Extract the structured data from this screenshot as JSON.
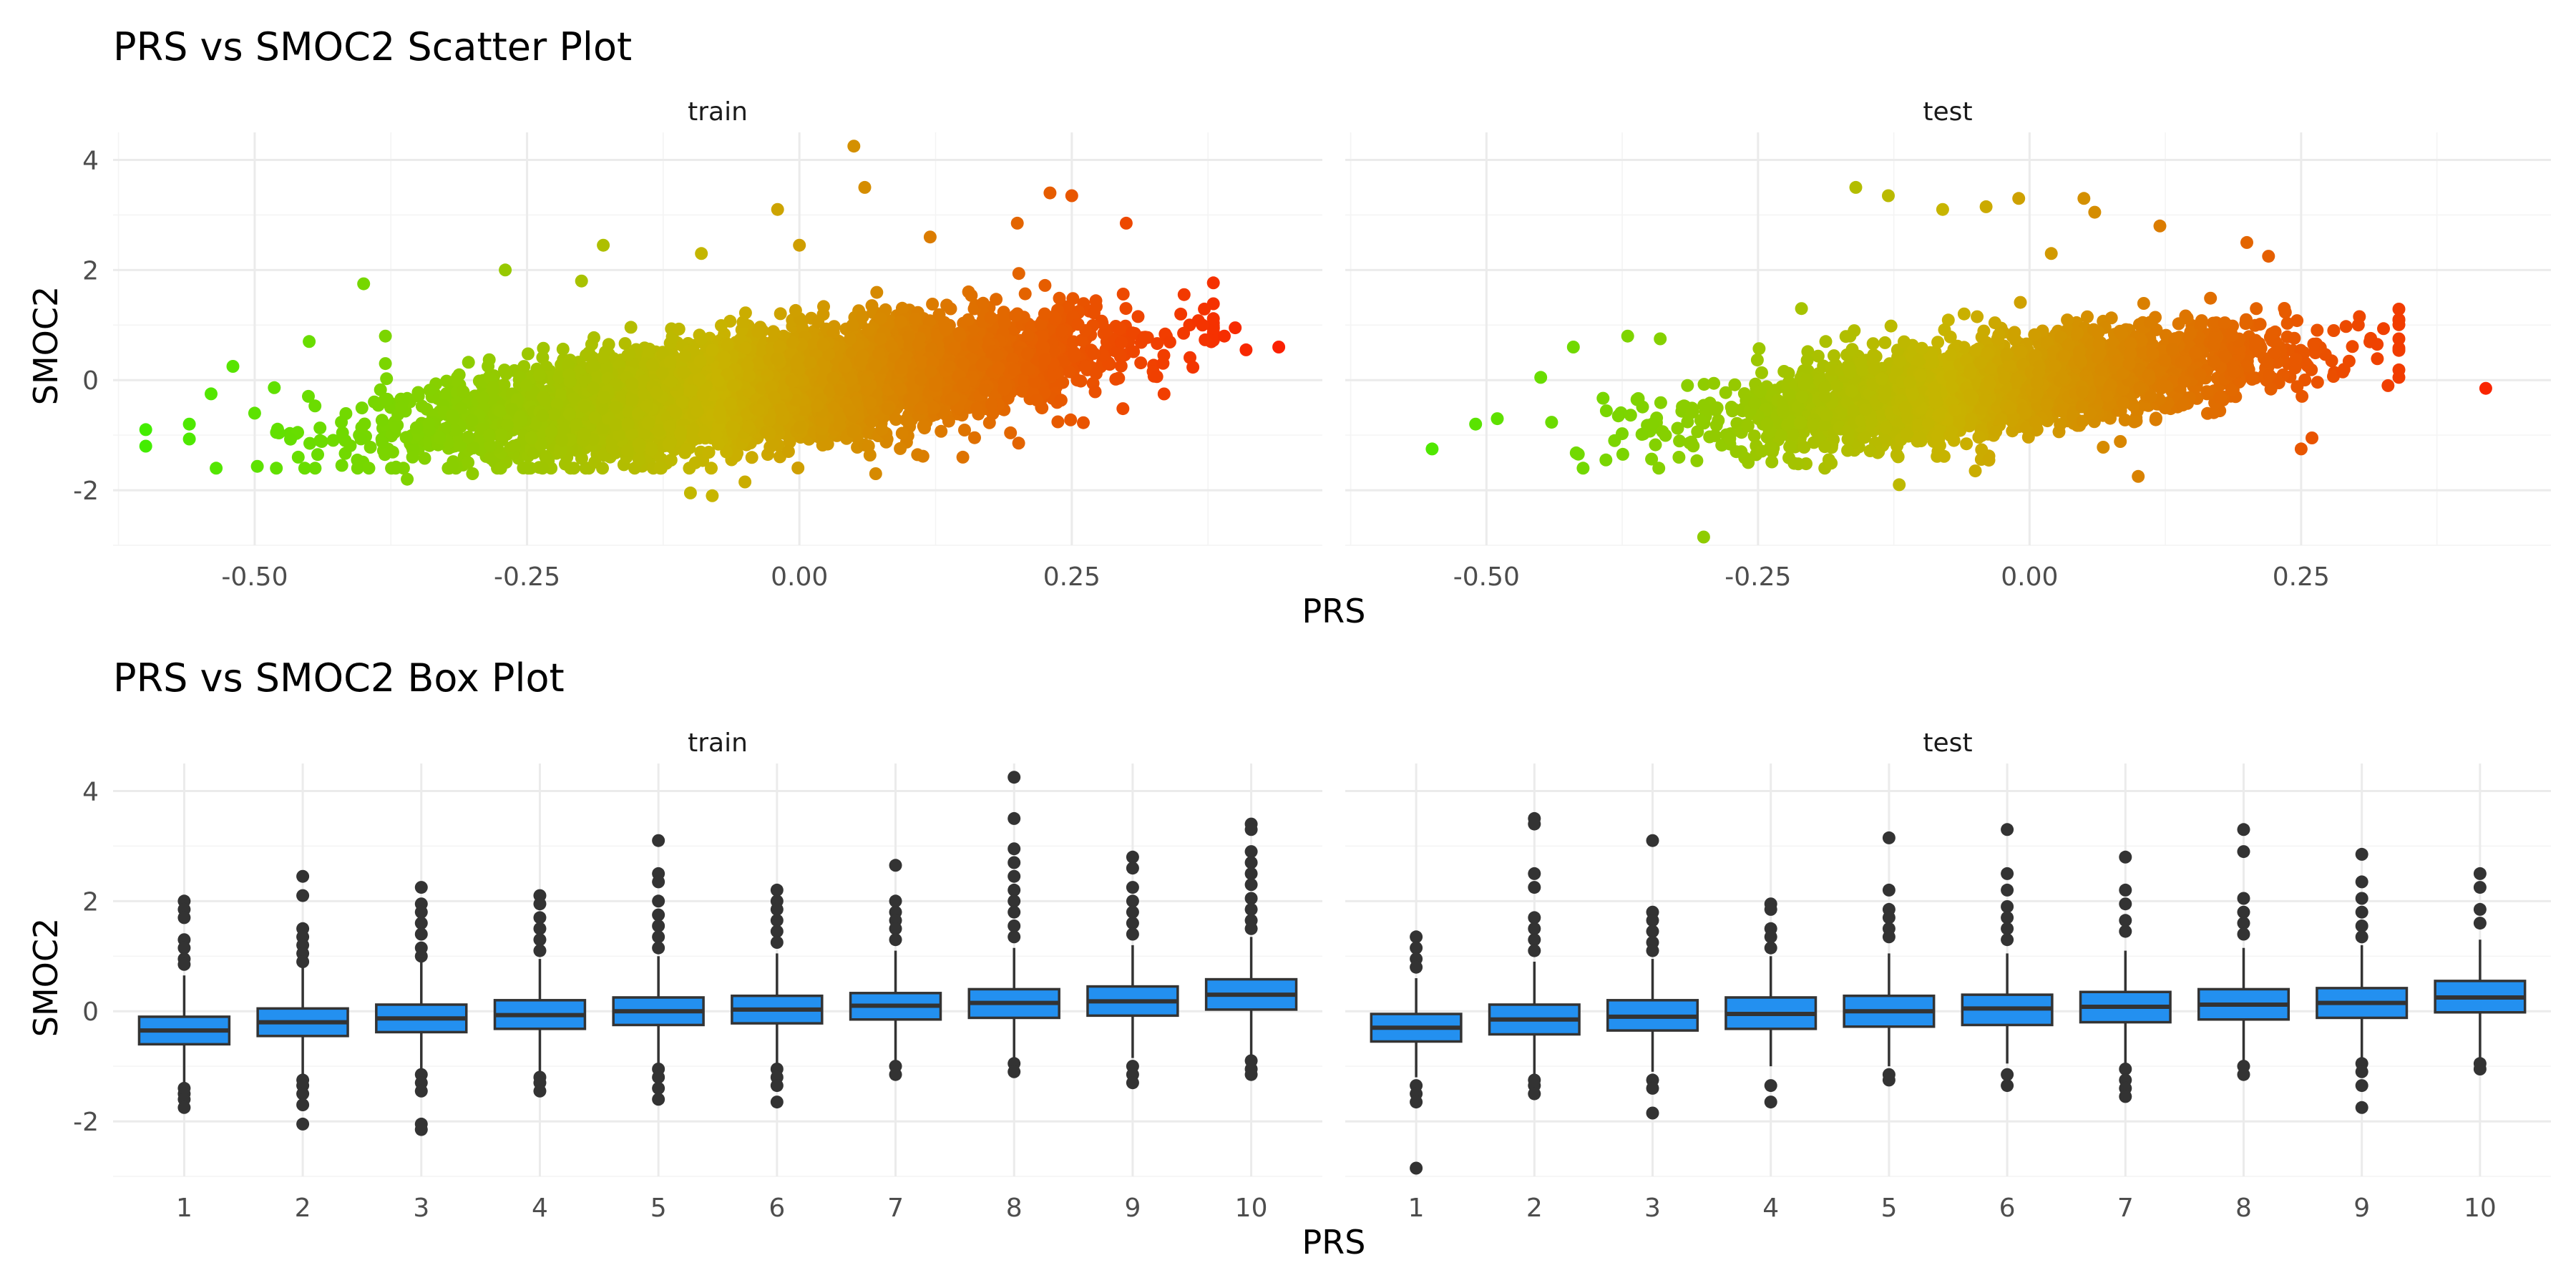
{
  "chart_data": [
    {
      "type": "scatter",
      "title": "PRS vs SMOC2 Scatter Plot",
      "xlabel": "PRS",
      "ylabel": "SMOC2",
      "facets": [
        "train",
        "test"
      ],
      "xlim": [
        -0.63,
        0.48
      ],
      "ylim": [
        -3.0,
        4.5
      ],
      "xticks": [
        "-0.50",
        "-0.25",
        "0.00",
        "0.25"
      ],
      "xtick_values": [
        -0.5,
        -0.25,
        0.0,
        0.25
      ],
      "yticks": [
        "-2",
        "0",
        "2",
        "4"
      ],
      "ytick_values": [
        -2,
        0,
        2,
        4
      ],
      "grid": true,
      "color_scale": {
        "low": "#3cf000",
        "mid": "#c8b400",
        "high": "#ff1400",
        "by": "PRS"
      },
      "trend": {
        "slope": 2.2,
        "intercept": -0.05
      },
      "panels": [
        {
          "facet": "train",
          "bulk": {
            "n": 6000,
            "x_mean": -0.03,
            "x_sd": 0.14,
            "x_min": -0.56,
            "x_max": 0.38,
            "resid_sd": 0.45
          },
          "points": [
            [
              -0.6,
              -0.9
            ],
            [
              -0.6,
              -1.2
            ],
            [
              -0.56,
              -0.8
            ],
            [
              -0.54,
              -0.25
            ],
            [
              -0.52,
              0.25
            ],
            [
              -0.5,
              -0.6
            ],
            [
              -0.48,
              -0.95
            ],
            [
              -0.45,
              0.7
            ],
            [
              -0.42,
              -1.55
            ],
            [
              -0.4,
              1.75
            ],
            [
              -0.38,
              0.8
            ],
            [
              -0.36,
              -1.8
            ],
            [
              -0.3,
              -1.7
            ],
            [
              -0.27,
              2.0
            ],
            [
              -0.2,
              1.8
            ],
            [
              -0.18,
              2.45
            ],
            [
              -0.1,
              -2.05
            ],
            [
              -0.09,
              2.3
            ],
            [
              -0.08,
              -2.1
            ],
            [
              -0.05,
              -1.85
            ],
            [
              -0.02,
              3.1
            ],
            [
              0.0,
              2.45
            ],
            [
              0.05,
              4.25
            ],
            [
              0.06,
              3.5
            ],
            [
              0.07,
              -1.7
            ],
            [
              0.12,
              2.6
            ],
            [
              0.15,
              -1.4
            ],
            [
              0.2,
              2.85
            ],
            [
              0.23,
              3.4
            ],
            [
              0.25,
              3.35
            ],
            [
              0.3,
              2.85
            ],
            [
              0.35,
              1.2
            ],
            [
              0.37,
              1.0
            ],
            [
              0.39,
              0.8
            ],
            [
              0.4,
              0.95
            ],
            [
              0.41,
              0.55
            ],
            [
              0.44,
              0.6
            ],
            [
              -0.38,
              0.3
            ],
            [
              -0.46,
              -1.4
            ],
            [
              -0.33,
              -1.05
            ]
          ]
        },
        {
          "facet": "test",
          "bulk": {
            "n": 2600,
            "x_mean": -0.03,
            "x_sd": 0.13,
            "x_min": -0.44,
            "x_max": 0.34,
            "resid_sd": 0.42
          },
          "points": [
            [
              -0.55,
              -1.25
            ],
            [
              -0.51,
              -0.8
            ],
            [
              -0.49,
              -0.7
            ],
            [
              -0.45,
              0.05
            ],
            [
              -0.42,
              0.6
            ],
            [
              -0.39,
              -1.45
            ],
            [
              -0.37,
              0.8
            ],
            [
              -0.3,
              -2.85
            ],
            [
              -0.21,
              1.3
            ],
            [
              -0.16,
              3.5
            ],
            [
              -0.13,
              3.35
            ],
            [
              -0.12,
              -1.9
            ],
            [
              -0.08,
              3.1
            ],
            [
              -0.05,
              -1.65
            ],
            [
              -0.04,
              3.15
            ],
            [
              -0.01,
              3.3
            ],
            [
              0.02,
              2.3
            ],
            [
              0.05,
              3.3
            ],
            [
              0.06,
              3.05
            ],
            [
              0.1,
              -1.75
            ],
            [
              0.12,
              2.8
            ],
            [
              0.2,
              2.5
            ],
            [
              0.22,
              2.25
            ],
            [
              0.25,
              -1.25
            ],
            [
              0.26,
              -1.05
            ],
            [
              0.28,
              0.9
            ],
            [
              0.32,
              0.65
            ],
            [
              0.33,
              -0.1
            ],
            [
              0.34,
              0.05
            ],
            [
              0.42,
              -0.15
            ],
            [
              -0.34,
              0.75
            ],
            [
              -0.27,
              -1.3
            ]
          ]
        }
      ]
    },
    {
      "type": "box",
      "title": "PRS vs SMOC2 Box Plot",
      "xlabel": "PRS",
      "ylabel": "SMOC2",
      "facets": [
        "train",
        "test"
      ],
      "categories": [
        "1",
        "2",
        "3",
        "4",
        "5",
        "6",
        "7",
        "8",
        "9",
        "10"
      ],
      "ylim": [
        -3.0,
        4.5
      ],
      "yticks": [
        "-2",
        "0",
        "2",
        "4"
      ],
      "ytick_values": [
        -2,
        0,
        2,
        4
      ],
      "grid": true,
      "fill": "#2390f0",
      "panels": [
        {
          "facet": "train",
          "boxes": [
            {
              "q1": -0.6,
              "median": -0.35,
              "q3": -0.1,
              "whisker_low": -1.3,
              "whisker_high": 0.65,
              "outliers": [
                2.0,
                1.85,
                1.7,
                1.3,
                1.15,
                0.95,
                0.85,
                -1.4,
                -1.5,
                -1.6,
                -1.75
              ]
            },
            {
              "q1": -0.45,
              "median": -0.2,
              "q3": 0.05,
              "whisker_low": -1.15,
              "whisker_high": 0.8,
              "outliers": [
                2.45,
                2.1,
                1.5,
                1.35,
                1.2,
                1.05,
                0.9,
                -1.25,
                -1.35,
                -1.5,
                -1.7,
                -2.05
              ]
            },
            {
              "q1": -0.38,
              "median": -0.13,
              "q3": 0.12,
              "whisker_low": -1.05,
              "whisker_high": 0.9,
              "outliers": [
                2.25,
                1.95,
                1.8,
                1.6,
                1.4,
                1.15,
                1.0,
                -1.15,
                -1.3,
                -1.45,
                -2.05,
                -2.15
              ]
            },
            {
              "q1": -0.32,
              "median": -0.07,
              "q3": 0.2,
              "whisker_low": -1.1,
              "whisker_high": 0.95,
              "outliers": [
                2.1,
                1.95,
                1.7,
                1.5,
                1.3,
                1.1,
                -1.2,
                -1.3,
                -1.45
              ]
            },
            {
              "q1": -0.25,
              "median": 0.0,
              "q3": 0.25,
              "whisker_low": -0.95,
              "whisker_high": 1.0,
              "outliers": [
                3.1,
                2.5,
                2.35,
                2.0,
                1.75,
                1.55,
                1.35,
                1.15,
                -1.05,
                -1.2,
                -1.4,
                -1.6
              ]
            },
            {
              "q1": -0.22,
              "median": 0.03,
              "q3": 0.28,
              "whisker_low": -0.95,
              "whisker_high": 1.05,
              "outliers": [
                2.2,
                2.0,
                1.85,
                1.65,
                1.45,
                1.25,
                -1.05,
                -1.2,
                -1.35,
                -1.65
              ]
            },
            {
              "q1": -0.15,
              "median": 0.1,
              "q3": 0.33,
              "whisker_low": -0.9,
              "whisker_high": 1.1,
              "outliers": [
                2.65,
                2.0,
                1.8,
                1.65,
                1.5,
                1.3,
                -1.0,
                -1.15
              ]
            },
            {
              "q1": -0.12,
              "median": 0.15,
              "q3": 0.4,
              "whisker_low": -0.85,
              "whisker_high": 1.15,
              "outliers": [
                4.25,
                3.5,
                2.95,
                2.7,
                2.45,
                2.2,
                2.0,
                1.8,
                1.55,
                1.35,
                -0.95,
                -1.1
              ]
            },
            {
              "q1": -0.08,
              "median": 0.18,
              "q3": 0.45,
              "whisker_low": -0.85,
              "whisker_high": 1.2,
              "outliers": [
                2.8,
                2.6,
                2.25,
                2.0,
                1.8,
                1.6,
                1.4,
                -1.0,
                -1.15,
                -1.3
              ]
            },
            {
              "q1": 0.03,
              "median": 0.3,
              "q3": 0.58,
              "whisker_low": -0.8,
              "whisker_high": 1.35,
              "outliers": [
                3.4,
                3.3,
                2.9,
                2.7,
                2.5,
                2.3,
                2.05,
                1.85,
                1.65,
                1.5,
                -0.9,
                -1.05,
                -1.15
              ]
            }
          ]
        },
        {
          "facet": "test",
          "boxes": [
            {
              "q1": -0.55,
              "median": -0.3,
              "q3": -0.05,
              "whisker_low": -1.2,
              "whisker_high": 0.6,
              "outliers": [
                1.35,
                1.15,
                0.95,
                0.8,
                -1.35,
                -1.5,
                -1.65,
                -2.85
              ]
            },
            {
              "q1": -0.42,
              "median": -0.15,
              "q3": 0.12,
              "whisker_low": -1.15,
              "whisker_high": 0.9,
              "outliers": [
                3.5,
                3.4,
                2.5,
                2.25,
                1.7,
                1.5,
                1.3,
                1.1,
                -1.25,
                -1.35,
                -1.5
              ]
            },
            {
              "q1": -0.35,
              "median": -0.1,
              "q3": 0.2,
              "whisker_low": -1.1,
              "whisker_high": 0.95,
              "outliers": [
                3.1,
                1.8,
                1.65,
                1.45,
                1.25,
                1.1,
                -1.25,
                -1.4,
                -1.85
              ]
            },
            {
              "q1": -0.32,
              "median": -0.05,
              "q3": 0.25,
              "whisker_low": -1.0,
              "whisker_high": 1.0,
              "outliers": [
                1.95,
                1.85,
                1.5,
                1.35,
                1.15,
                -1.35,
                -1.65
              ]
            },
            {
              "q1": -0.28,
              "median": 0.0,
              "q3": 0.28,
              "whisker_low": -1.0,
              "whisker_high": 1.05,
              "outliers": [
                3.15,
                2.2,
                1.85,
                1.7,
                1.5,
                1.35,
                -1.15,
                -1.25
              ]
            },
            {
              "q1": -0.25,
              "median": 0.05,
              "q3": 0.3,
              "whisker_low": -0.95,
              "whisker_high": 1.05,
              "outliers": [
                3.3,
                2.5,
                2.2,
                1.9,
                1.7,
                1.5,
                1.3,
                -1.15,
                -1.35
              ]
            },
            {
              "q1": -0.2,
              "median": 0.08,
              "q3": 0.35,
              "whisker_low": -0.95,
              "whisker_high": 1.1,
              "outliers": [
                2.8,
                2.2,
                1.95,
                1.65,
                1.45,
                -1.05,
                -1.25,
                -1.4,
                -1.55
              ]
            },
            {
              "q1": -0.15,
              "median": 0.12,
              "q3": 0.4,
              "whisker_low": -0.9,
              "whisker_high": 1.15,
              "outliers": [
                3.3,
                2.9,
                2.05,
                1.8,
                1.6,
                1.4,
                -1.0,
                -1.15
              ]
            },
            {
              "q1": -0.12,
              "median": 0.15,
              "q3": 0.42,
              "whisker_low": -0.85,
              "whisker_high": 1.2,
              "outliers": [
                2.85,
                2.35,
                2.05,
                1.8,
                1.55,
                1.35,
                -0.95,
                -1.1,
                -1.35,
                -1.75
              ]
            },
            {
              "q1": -0.02,
              "median": 0.25,
              "q3": 0.55,
              "whisker_low": -0.85,
              "whisker_high": 1.3,
              "outliers": [
                2.5,
                2.25,
                1.85,
                1.6,
                -0.95,
                -1.05
              ]
            }
          ]
        }
      ]
    }
  ]
}
